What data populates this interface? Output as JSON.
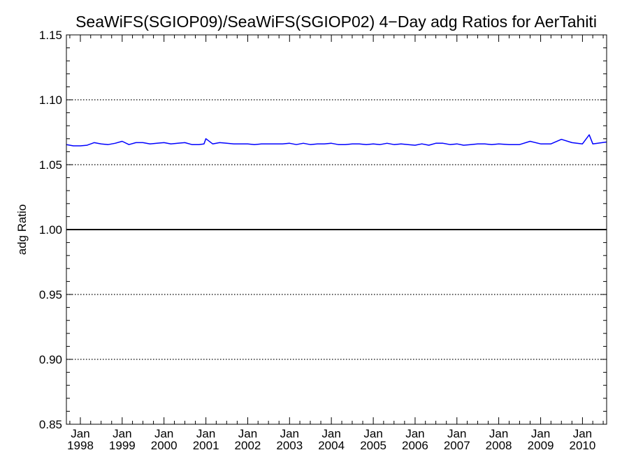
{
  "chart_data": {
    "type": "line",
    "title": "SeaWiFS(SGIOP09)/SeaWiFS(SGIOP02) 4−Day adg Ratios for AerTahiti",
    "xlabel": "",
    "ylabel": "adg Ratio",
    "xlim": [
      "1997-09-01",
      "2010-07-31"
    ],
    "ylim": [
      0.85,
      1.15
    ],
    "y_ticks": [
      "0.85",
      "0.90",
      "0.95",
      "1.00",
      "1.05",
      "1.10",
      "1.15"
    ],
    "x_ticks": [
      {
        "month": "Jan",
        "year": "1998",
        "date": "1998-01-01"
      },
      {
        "month": "Jan",
        "year": "1999",
        "date": "1999-01-01"
      },
      {
        "month": "Jan",
        "year": "2000",
        "date": "2000-01-01"
      },
      {
        "month": "Jan",
        "year": "2001",
        "date": "2001-01-01"
      },
      {
        "month": "Jan",
        "year": "2002",
        "date": "2002-01-01"
      },
      {
        "month": "Jan",
        "year": "2003",
        "date": "2003-01-01"
      },
      {
        "month": "Jan",
        "year": "2004",
        "date": "2004-01-01"
      },
      {
        "month": "Jan",
        "year": "2005",
        "date": "2005-01-01"
      },
      {
        "month": "Jan",
        "year": "2006",
        "date": "2006-01-01"
      },
      {
        "month": "Jan",
        "year": "2007",
        "date": "2007-01-01"
      },
      {
        "month": "Jan",
        "year": "2008",
        "date": "2008-01-01"
      },
      {
        "month": "Jan",
        "year": "2009",
        "date": "2009-01-01"
      },
      {
        "month": "Jan",
        "year": "2010",
        "date": "2010-01-01"
      }
    ],
    "grid": "horizontal dotted at 0.90, 0.95, 1.05, 1.10",
    "reference_line": 1.0,
    "series": [
      {
        "color": "#0000ff",
        "x": [
          "1997-09-01",
          "1997-11-01",
          "1998-01-01",
          "1998-03-01",
          "1998-05-01",
          "1998-07-01",
          "1998-09-01",
          "1998-11-01",
          "1999-01-01",
          "1999-03-01",
          "1999-05-01",
          "1999-07-01",
          "1999-09-01",
          "1999-11-01",
          "2000-01-01",
          "2000-03-01",
          "2000-05-01",
          "2000-07-01",
          "2000-09-01",
          "2000-11-01",
          "2000-12-15",
          "2001-01-01",
          "2001-03-01",
          "2001-05-01",
          "2001-07-01",
          "2001-09-01",
          "2001-11-01",
          "2002-01-01",
          "2002-03-01",
          "2002-05-01",
          "2002-07-01",
          "2002-09-01",
          "2002-11-01",
          "2003-01-01",
          "2003-03-01",
          "2003-05-01",
          "2003-07-01",
          "2003-09-01",
          "2003-11-01",
          "2004-01-01",
          "2004-03-01",
          "2004-05-01",
          "2004-07-01",
          "2004-09-01",
          "2004-11-01",
          "2005-01-01",
          "2005-03-01",
          "2005-05-01",
          "2005-07-01",
          "2005-09-01",
          "2005-11-01",
          "2006-01-01",
          "2006-03-01",
          "2006-05-01",
          "2006-07-01",
          "2006-09-01",
          "2006-11-01",
          "2007-01-01",
          "2007-03-01",
          "2007-05-01",
          "2007-07-01",
          "2007-09-01",
          "2007-11-01",
          "2008-01-01",
          "2008-04-01",
          "2008-07-01",
          "2008-10-01",
          "2009-01-01",
          "2009-04-01",
          "2009-07-01",
          "2009-10-01",
          "2010-01-01",
          "2010-03-01",
          "2010-04-01",
          "2010-07-31"
        ],
        "values": [
          1.0655,
          1.0645,
          1.0645,
          1.065,
          1.067,
          1.066,
          1.0655,
          1.0665,
          1.068,
          1.0655,
          1.067,
          1.067,
          1.066,
          1.0665,
          1.067,
          1.066,
          1.0665,
          1.067,
          1.0655,
          1.0655,
          1.066,
          1.07,
          1.066,
          1.067,
          1.0665,
          1.066,
          1.066,
          1.066,
          1.0655,
          1.066,
          1.066,
          1.066,
          1.066,
          1.0665,
          1.0655,
          1.0665,
          1.0655,
          1.066,
          1.066,
          1.0665,
          1.0655,
          1.0655,
          1.066,
          1.066,
          1.0655,
          1.066,
          1.0655,
          1.0665,
          1.0655,
          1.066,
          1.0655,
          1.065,
          1.066,
          1.065,
          1.0665,
          1.0665,
          1.0655,
          1.066,
          1.065,
          1.0655,
          1.066,
          1.066,
          1.0655,
          1.066,
          1.0655,
          1.0655,
          1.068,
          1.066,
          1.066,
          1.0695,
          1.067,
          1.066,
          1.073,
          1.066,
          1.0675
        ]
      }
    ]
  }
}
